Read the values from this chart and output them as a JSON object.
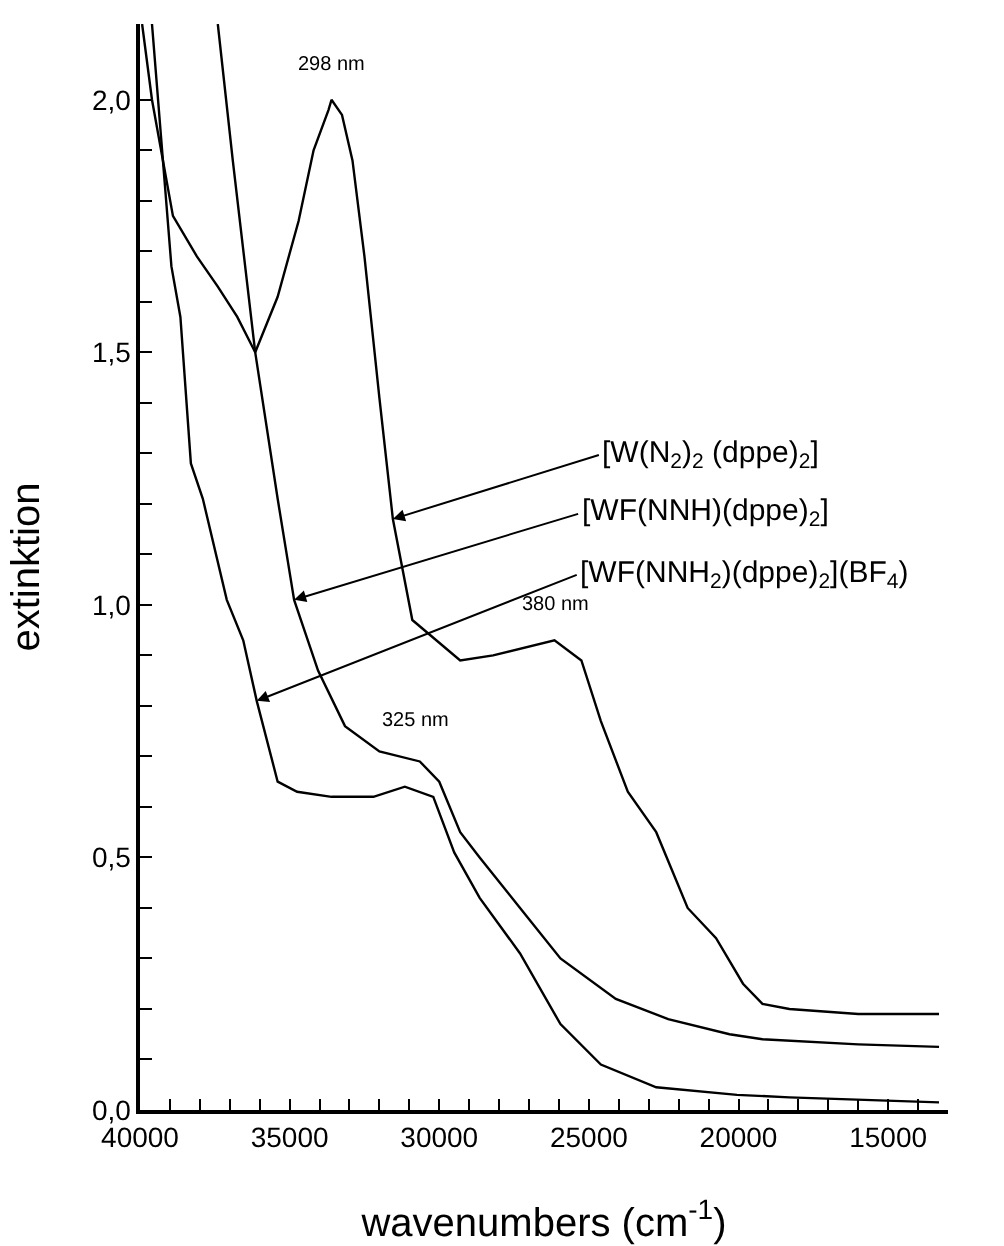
{
  "chart_data": {
    "type": "line",
    "xlabel": "wavenumbers (cm$^{-1}$)",
    "ylabel": "extinktion",
    "xlim": [
      40000,
      13000
    ],
    "xticks": [
      40000,
      {
        "value": 39000,
        "label": null
      },
      {
        "value": 38000,
        "label": null
      },
      {
        "value": 37000,
        "label": null
      },
      {
        "value": 36000,
        "label": null
      },
      35000,
      {
        "value": 34000,
        "label": null
      },
      {
        "value": 33000,
        "label": null
      },
      {
        "value": 32000,
        "label": null
      },
      {
        "value": 31000,
        "label": null
      },
      30000,
      {
        "value": 29000,
        "label": null
      },
      {
        "value": 28000,
        "label": null
      },
      {
        "value": 27000,
        "label": null
      },
      {
        "value": 26000,
        "label": null
      },
      25000,
      {
        "value": 24000,
        "label": null
      },
      {
        "value": 23000,
        "label": null
      },
      {
        "value": 22000,
        "label": null
      },
      {
        "value": 21000,
        "label": null
      },
      20000,
      {
        "value": 19000,
        "label": null
      },
      {
        "value": 18000,
        "label": null
      },
      {
        "value": 17000,
        "label": null
      },
      {
        "value": 16000,
        "label": null
      },
      15000,
      {
        "value": 14000,
        "label": null
      }
    ],
    "ylim": [
      0,
      2.15
    ],
    "yticks": [
      {
        "value": 0,
        "label": "0,0"
      },
      {
        "value": 0.1,
        "label": null
      },
      {
        "value": 0.2,
        "label": null
      },
      {
        "value": 0.3,
        "label": null
      },
      {
        "value": 0.4,
        "label": null
      },
      {
        "value": 0.5,
        "label": "0,5"
      },
      {
        "value": 0.6,
        "label": null
      },
      {
        "value": 0.7,
        "label": null
      },
      {
        "value": 0.8,
        "label": null
      },
      {
        "value": 0.9,
        "label": null
      },
      {
        "value": 1.0,
        "label": "1,0"
      },
      {
        "value": 1.1,
        "label": null
      },
      {
        "value": 1.2,
        "label": null
      },
      {
        "value": 1.3,
        "label": null
      },
      {
        "value": 1.4,
        "label": null
      },
      {
        "value": 1.5,
        "label": "1,5"
      },
      {
        "value": 1.6,
        "label": null
      },
      {
        "value": 1.7,
        "label": null
      },
      {
        "value": 1.8,
        "label": null
      },
      {
        "value": 1.9,
        "label": null
      },
      {
        "value": 2.0,
        "label": "2,0"
      }
    ],
    "grid": false,
    "marker": "none",
    "line_style": "solid",
    "series": [
      {
        "color": "#000000",
        "x": [
          39930,
          39600,
          38900,
          38100,
          37400,
          36750,
          36150,
          35400,
          34700,
          34200,
          33700,
          33600,
          33250,
          32900,
          32500,
          32000,
          31550,
          30900,
          29300,
          28200,
          26150,
          25250,
          24600,
          23700,
          22750,
          21700,
          20750,
          19850,
          19200,
          18300,
          16000,
          13300
        ],
        "values": [
          2.15,
          2.0,
          1.77,
          1.69,
          1.63,
          1.57,
          1.5,
          1.61,
          1.76,
          1.9,
          1.98,
          2.0,
          1.97,
          1.88,
          1.69,
          1.41,
          1.17,
          0.97,
          0.89,
          0.9,
          0.93,
          0.89,
          0.77,
          0.63,
          0.55,
          0.4,
          0.34,
          0.25,
          0.21,
          0.2,
          0.19,
          0.19
        ]
      },
      {
        "color": "#000000",
        "x": [
          37400,
          36900,
          36150,
          35400,
          34850,
          34050,
          33150,
          32000,
          30650,
          30000,
          29300,
          28650,
          27300,
          25950,
          24100,
          22350,
          20300,
          19200,
          16000,
          13300
        ],
        "values": [
          2.15,
          1.88,
          1.5,
          1.21,
          1.01,
          0.87,
          0.76,
          0.71,
          0.69,
          0.65,
          0.55,
          0.5,
          0.4,
          0.3,
          0.22,
          0.18,
          0.15,
          0.14,
          0.13,
          0.125
        ]
      },
      {
        "color": "#000000",
        "x": [
          39600,
          38950,
          38650,
          38300,
          37900,
          37100,
          36550,
          36100,
          35400,
          34750,
          33600,
          32200,
          31150,
          30200,
          29500,
          28650,
          27300,
          25950,
          24600,
          22750,
          20050,
          18300,
          13300
        ],
        "values": [
          2.15,
          1.67,
          1.57,
          1.28,
          1.21,
          1.01,
          0.93,
          0.81,
          0.65,
          0.63,
          0.62,
          0.62,
          0.64,
          0.62,
          0.51,
          0.42,
          0.31,
          0.17,
          0.09,
          0.045,
          0.03,
          0.025,
          0.015
        ]
      }
    ],
    "annotations": [
      {
        "text": "[W(N$_{2}$)$_{2}$ (dppe)$_{2}$]",
        "x": 31550,
        "y": 1.17
      },
      {
        "text": "[WF(NNH)(dppe)$_{2}$]",
        "x": 34850,
        "y": 1.01
      },
      {
        "text": "[WF(NNH$_{2}$)(dppe)$_{2}$](BF$_{4}$)",
        "x": 36100,
        "y": 0.81
      },
      {
        "text": "298 nm",
        "x": 33600,
        "y": 2.0
      },
      {
        "text": "325 nm",
        "x": 30800,
        "y": 0.7
      },
      {
        "text": "380 nm",
        "x": 26150,
        "y": 0.93
      }
    ]
  }
}
